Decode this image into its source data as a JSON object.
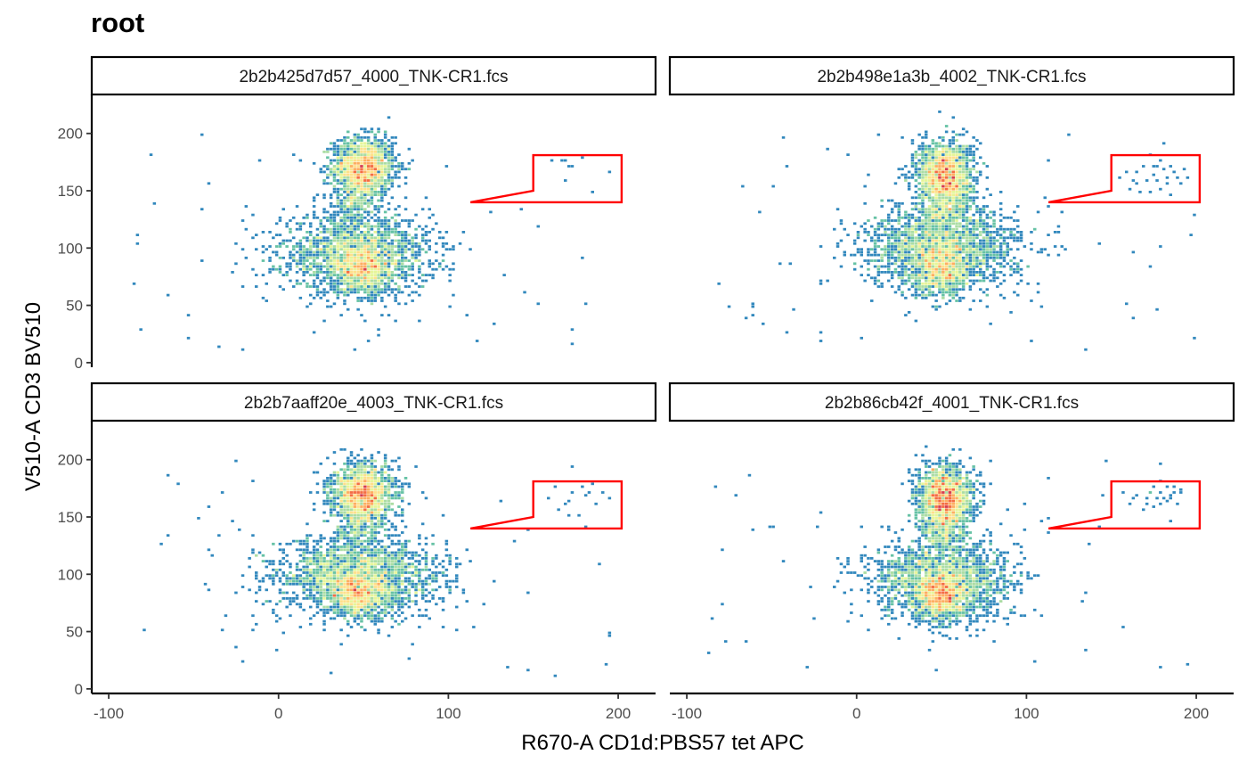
{
  "chart_data": {
    "type": "scatter",
    "subtype": "hexbin-density-faceted",
    "title": "root",
    "xlabel": "R670-A CD1d:PBS57 tet APC",
    "ylabel": "V510-A CD3 BV510",
    "xlim": [
      -110,
      222
    ],
    "ylim": [
      -4,
      234
    ],
    "x_ticks": [
      -100,
      0,
      100,
      200
    ],
    "y_ticks": [
      0,
      50,
      100,
      150,
      200
    ],
    "x_tick_labels": [
      "-100",
      "0",
      "100",
      "200"
    ],
    "y_tick_labels": [
      "0",
      "50",
      "100",
      "150",
      "200"
    ],
    "grid": false,
    "color_scale": "Spectral (low density purple/blue → yellow → red high density)",
    "density_colors": [
      "#5e4fa2",
      "#3288bd",
      "#66c2a5",
      "#abdda4",
      "#e6f598",
      "#fee08b",
      "#fdae61",
      "#f46d43",
      "#d53e4f"
    ],
    "gate_color": "#ff0000",
    "gate": {
      "shape": "polygon",
      "vertices": [
        [
          113,
          140
        ],
        [
          150,
          150
        ],
        [
          150,
          181
        ],
        [
          202,
          181
        ],
        [
          202,
          140
        ]
      ]
    },
    "facets": [
      {
        "label": "2b2b425d7d57_4000_TNK-CR1.fcs",
        "populations": [
          {
            "cx": 50,
            "cy": 170,
            "sx": 9,
            "sy": 13,
            "n": 1700
          },
          {
            "cx": 46,
            "cy": 95,
            "sx": 22,
            "sy": 17,
            "n": 1900
          },
          {
            "cx": 50,
            "cy": 80,
            "sx": 8,
            "sy": 10,
            "n": 700
          },
          {
            "cx": 45,
            "cy": 140,
            "sx": 6,
            "sy": 8,
            "n": 160
          }
        ],
        "gate_events": [
          [
            160,
            175
          ],
          [
            168,
            158
          ],
          [
            173,
            170
          ],
          [
            185,
            148
          ],
          [
            178,
            178
          ],
          [
            195,
            165
          ]
        ]
      },
      {
        "label": "2b2b498e1a3b_4002_TNK-CR1.fcs",
        "populations": [
          {
            "cx": 52,
            "cy": 163,
            "sx": 8,
            "sy": 15,
            "n": 1800
          },
          {
            "cx": 50,
            "cy": 100,
            "sx": 22,
            "sy": 18,
            "n": 2000
          },
          {
            "cx": 50,
            "cy": 80,
            "sx": 8,
            "sy": 11,
            "n": 700
          },
          {
            "cx": 52,
            "cy": 130,
            "sx": 8,
            "sy": 8,
            "n": 200
          }
        ],
        "gate_events": [
          [
            155,
            160
          ],
          [
            160,
            152
          ],
          [
            165,
            165
          ],
          [
            170,
            158
          ],
          [
            174,
            170
          ],
          [
            178,
            150
          ],
          [
            182,
            162
          ],
          [
            185,
            172
          ],
          [
            180,
            168
          ],
          [
            176,
            158
          ],
          [
            188,
            160
          ],
          [
            190,
            155
          ],
          [
            172,
            148
          ],
          [
            184,
            145
          ],
          [
            166,
            148
          ],
          [
            192,
            168
          ],
          [
            168,
            172
          ],
          [
            186,
            166
          ],
          [
            162,
            158
          ],
          [
            179,
            175
          ],
          [
            194,
            160
          ],
          [
            158,
            166
          ],
          [
            175,
            164
          ],
          [
            183,
            156
          ]
        ]
      },
      {
        "label": "2b2b7aaff20e_4003_TNK-CR1.fcs",
        "populations": [
          {
            "cx": 50,
            "cy": 170,
            "sx": 9,
            "sy": 13,
            "n": 1800
          },
          {
            "cx": 47,
            "cy": 98,
            "sx": 24,
            "sy": 17,
            "n": 2100
          },
          {
            "cx": 47,
            "cy": 82,
            "sx": 9,
            "sy": 10,
            "n": 800
          },
          {
            "cx": 47,
            "cy": 140,
            "sx": 6,
            "sy": 7,
            "n": 160
          }
        ],
        "gate_events": [
          [
            158,
            165
          ],
          [
            163,
            175
          ],
          [
            168,
            160
          ],
          [
            172,
            170
          ],
          [
            176,
            152
          ],
          [
            180,
            168
          ],
          [
            184,
            178
          ],
          [
            186,
            160
          ],
          [
            190,
            170
          ],
          [
            170,
            150
          ],
          [
            178,
            176
          ],
          [
            194,
            165
          ],
          [
            165,
            155
          ],
          [
            182,
            172
          ]
        ]
      },
      {
        "label": "2b2b86cb42f_4001_TNK-CR1.fcs",
        "populations": [
          {
            "cx": 52,
            "cy": 166,
            "sx": 8,
            "sy": 14,
            "n": 1800
          },
          {
            "cx": 50,
            "cy": 95,
            "sx": 20,
            "sy": 17,
            "n": 1900
          },
          {
            "cx": 49,
            "cy": 78,
            "sx": 7,
            "sy": 10,
            "n": 750
          },
          {
            "cx": 50,
            "cy": 135,
            "sx": 6,
            "sy": 8,
            "n": 180
          }
        ],
        "gate_events": [
          [
            160,
            160
          ],
          [
            165,
            168
          ],
          [
            170,
            162
          ],
          [
            172,
            170
          ],
          [
            175,
            158
          ],
          [
            178,
            172
          ],
          [
            180,
            165
          ],
          [
            182,
            175
          ],
          [
            184,
            168
          ],
          [
            186,
            172
          ],
          [
            188,
            162
          ],
          [
            190,
            170
          ],
          [
            174,
            176
          ],
          [
            168,
            156
          ],
          [
            176,
            166
          ],
          [
            183,
            163
          ],
          [
            187,
            176
          ],
          [
            162,
            165
          ],
          [
            179,
            160
          ],
          [
            185,
            166
          ],
          [
            191,
            174
          ],
          [
            171,
            166
          ]
        ]
      }
    ]
  }
}
